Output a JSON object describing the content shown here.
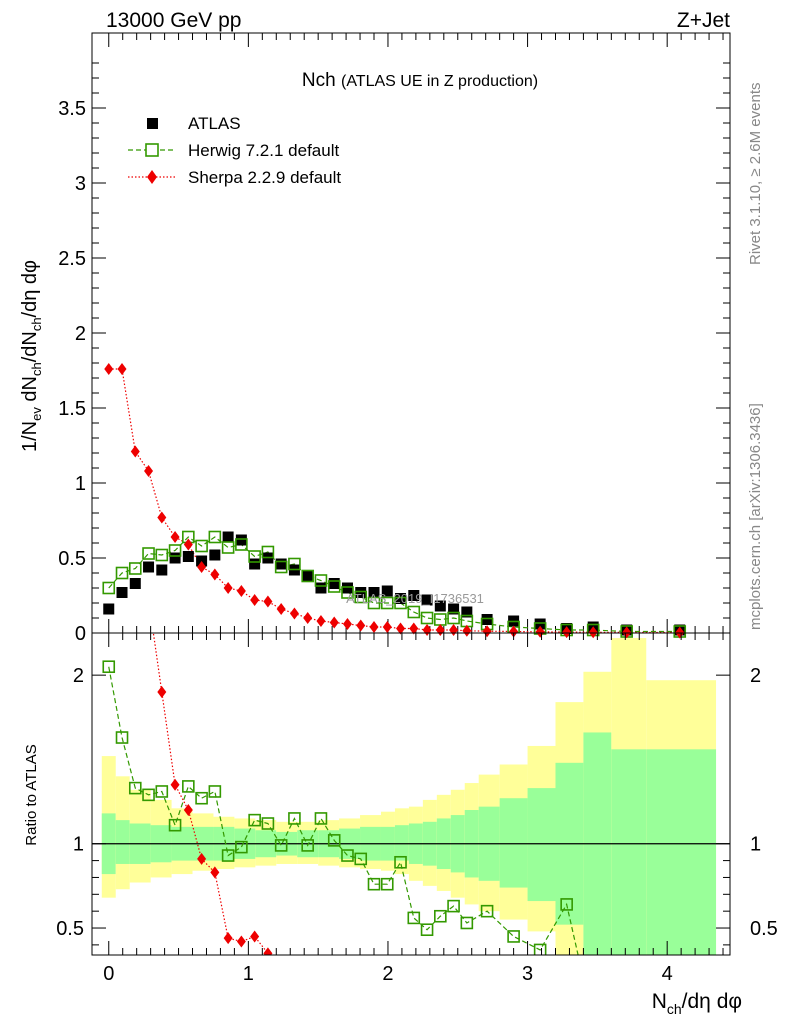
{
  "header": {
    "left": "13000 GeV pp",
    "right": "Z+Jet"
  },
  "side_labels": {
    "rivet": "Rivet 3.1.10, ≥ 2.6M events",
    "mcplots": "mcplots.cern.ch [arXiv:1306.3436]"
  },
  "watermark": "ATLAS_2019_I1736531",
  "colors": {
    "data": "#000000",
    "herwig": "#339900",
    "sherpa": "#ee0000",
    "band_inner": "#99ff99",
    "band_outer": "#ffff99"
  },
  "chart_data": [
    {
      "type": "scatter",
      "panel": "main",
      "title": "Nch",
      "subtitle": "(ATLAS UE in Z production)",
      "ylabel": "1/N_ev dN_ch/dN_ch/dη dφ",
      "xlabel": "",
      "xlim": [
        -0.12,
        4.45
      ],
      "ylim": [
        0,
        4.0
      ],
      "y_ticks": [
        "0",
        "0.5",
        "1",
        "1.5",
        "2",
        "2.5",
        "3",
        "3.5"
      ],
      "x_ticks": [
        "0",
        "1",
        "2",
        "3",
        "4"
      ],
      "legend": {
        "placement": "top-left",
        "entries": [
          "ATLAS",
          "Herwig 7.2.1 default",
          "Sherpa 2.2.9 default"
        ]
      },
      "series": [
        {
          "name": "ATLAS",
          "marker": "filled-square",
          "x": [
            0.0,
            0.095,
            0.19,
            0.285,
            0.38,
            0.475,
            0.57,
            0.665,
            0.76,
            0.855,
            0.95,
            1.045,
            1.14,
            1.235,
            1.33,
            1.425,
            1.52,
            1.615,
            1.71,
            1.805,
            1.9,
            1.995,
            2.09,
            2.185,
            2.28,
            2.375,
            2.47,
            2.565,
            2.71,
            2.9,
            3.09,
            3.28,
            3.47,
            3.71,
            4.09
          ],
          "y": [
            0.16,
            0.27,
            0.33,
            0.44,
            0.42,
            0.5,
            0.51,
            0.48,
            0.52,
            0.64,
            0.62,
            0.46,
            0.5,
            0.46,
            0.42,
            0.38,
            0.3,
            0.33,
            0.3,
            0.27,
            0.27,
            0.28,
            0.23,
            0.25,
            0.22,
            0.18,
            0.16,
            0.14,
            0.09,
            0.08,
            0.06,
            0.03,
            0.04,
            0.02,
            0.02
          ]
        },
        {
          "name": "Herwig 7.2.1 default",
          "marker": "open-square",
          "x": [
            0.0,
            0.095,
            0.19,
            0.285,
            0.38,
            0.475,
            0.57,
            0.665,
            0.76,
            0.855,
            0.95,
            1.045,
            1.14,
            1.235,
            1.33,
            1.425,
            1.52,
            1.615,
            1.71,
            1.805,
            1.9,
            1.995,
            2.09,
            2.185,
            2.28,
            2.375,
            2.47,
            2.565,
            2.71,
            2.9,
            3.09,
            3.28,
            3.47,
            3.71,
            4.09
          ],
          "y": [
            0.3,
            0.4,
            0.43,
            0.53,
            0.52,
            0.55,
            0.64,
            0.58,
            0.64,
            0.57,
            0.59,
            0.51,
            0.54,
            0.44,
            0.46,
            0.38,
            0.35,
            0.31,
            0.27,
            0.24,
            0.2,
            0.2,
            0.2,
            0.14,
            0.1,
            0.09,
            0.1,
            0.08,
            0.06,
            0.04,
            0.03,
            0.02,
            0.02,
            0.01,
            0.01
          ]
        },
        {
          "name": "Sherpa 2.2.9 default",
          "marker": "filled-diamond",
          "x": [
            0.0,
            0.095,
            0.19,
            0.285,
            0.38,
            0.475,
            0.57,
            0.665,
            0.76,
            0.855,
            0.95,
            1.045,
            1.14,
            1.235,
            1.33,
            1.425,
            1.52,
            1.615,
            1.71,
            1.805,
            1.9,
            1.995,
            2.09,
            2.185,
            2.28,
            2.375,
            2.47,
            2.565,
            2.71,
            2.9,
            3.09,
            3.28,
            3.47,
            3.71,
            4.09
          ],
          "y": [
            1.76,
            1.76,
            1.21,
            1.08,
            0.77,
            0.64,
            0.59,
            0.44,
            0.39,
            0.3,
            0.28,
            0.22,
            0.21,
            0.16,
            0.13,
            0.1,
            0.08,
            0.07,
            0.06,
            0.05,
            0.04,
            0.04,
            0.03,
            0.03,
            0.02,
            0.02,
            0.02,
            0.015,
            0.012,
            0.01,
            0.008,
            0.006,
            0.005,
            0.004,
            0.003
          ]
        }
      ]
    },
    {
      "type": "line",
      "panel": "ratio",
      "ylabel": "Ratio to ATLAS",
      "xlabel": "N_ch/dη dφ",
      "xlim": [
        -0.12,
        4.45
      ],
      "ylim": [
        0.34,
        2.25
      ],
      "y_ticks": [
        "0.5",
        "1",
        "2"
      ],
      "x_ticks": [
        "0",
        "1",
        "2",
        "3",
        "4"
      ],
      "reference_line": 1,
      "bands": {
        "edges": [
          -0.05,
          0.05,
          0.15,
          0.3,
          0.45,
          0.6,
          0.75,
          0.9,
          1.05,
          1.2,
          1.35,
          1.5,
          1.65,
          1.8,
          1.95,
          2.05,
          2.15,
          2.25,
          2.35,
          2.45,
          2.55,
          2.65,
          2.8,
          3.0,
          3.2,
          3.4,
          3.6,
          3.85,
          4.35
        ],
        "inner_lo": [
          0.82,
          0.88,
          0.88,
          0.89,
          0.9,
          0.9,
          0.9,
          0.91,
          0.92,
          0.93,
          0.92,
          0.92,
          0.91,
          0.9,
          0.9,
          0.9,
          0.88,
          0.87,
          0.85,
          0.83,
          0.8,
          0.78,
          0.74,
          0.66,
          0.52,
          0.34,
          0.34,
          0.34
        ],
        "inner_hi": [
          1.18,
          1.14,
          1.12,
          1.11,
          1.1,
          1.1,
          1.1,
          1.09,
          1.08,
          1.07,
          1.08,
          1.08,
          1.09,
          1.1,
          1.1,
          1.11,
          1.12,
          1.13,
          1.15,
          1.17,
          1.2,
          1.22,
          1.27,
          1.33,
          1.48,
          1.66,
          1.56,
          1.56
        ],
        "outer_lo": [
          0.68,
          0.73,
          0.77,
          0.8,
          0.82,
          0.84,
          0.85,
          0.86,
          0.87,
          0.88,
          0.88,
          0.87,
          0.86,
          0.85,
          0.84,
          0.82,
          0.78,
          0.75,
          0.72,
          0.68,
          0.64,
          0.6,
          0.55,
          0.48,
          0.34,
          0.34,
          0.34,
          0.34
        ],
        "outer_hi": [
          1.52,
          1.4,
          1.32,
          1.26,
          1.21,
          1.18,
          1.16,
          1.15,
          1.14,
          1.13,
          1.13,
          1.14,
          1.15,
          1.17,
          1.19,
          1.21,
          1.22,
          1.26,
          1.29,
          1.32,
          1.36,
          1.41,
          1.47,
          1.58,
          1.84,
          2.02,
          2.22,
          1.97
        ]
      },
      "series": [
        {
          "name": "Herwig 7.2.1 default",
          "x": [
            0.0,
            0.095,
            0.19,
            0.285,
            0.38,
            0.475,
            0.57,
            0.665,
            0.76,
            0.855,
            0.95,
            1.045,
            1.14,
            1.235,
            1.33,
            1.425,
            1.52,
            1.615,
            1.71,
            1.805,
            1.9,
            1.995,
            2.09,
            2.185,
            2.28,
            2.375,
            2.47,
            2.565,
            2.71,
            2.9,
            3.09,
            3.28
          ],
          "y": [
            2.05,
            1.63,
            1.33,
            1.29,
            1.31,
            1.11,
            1.34,
            1.27,
            1.31,
            0.93,
            0.98,
            1.14,
            1.12,
            0.99,
            1.15,
            0.99,
            1.15,
            1.02,
            0.93,
            0.91,
            0.76,
            0.76,
            0.89,
            0.56,
            0.49,
            0.57,
            0.63,
            0.53,
            0.6,
            0.45,
            0.37,
            0.64
          ]
        },
        {
          "name": "Sherpa 2.2.9 default",
          "x": [
            0.285,
            0.38,
            0.475,
            0.57,
            0.665,
            0.76,
            0.855,
            0.95,
            1.045,
            1.14
          ],
          "y": [
            2.45,
            1.9,
            1.35,
            1.2,
            0.91,
            0.83,
            0.44,
            0.42,
            0.45,
            0.35
          ]
        }
      ]
    }
  ]
}
